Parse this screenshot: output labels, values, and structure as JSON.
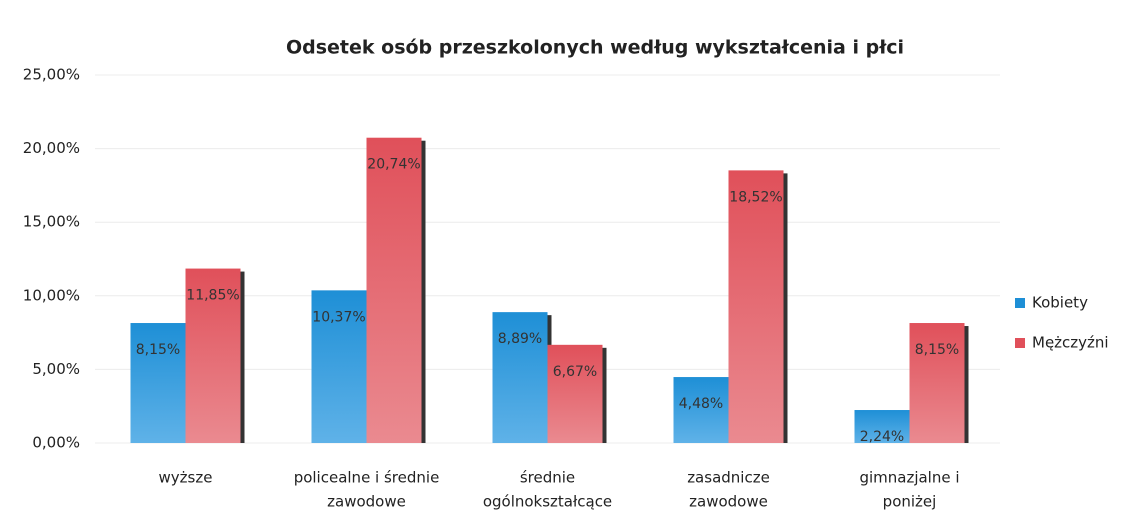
{
  "chart_data": {
    "type": "bar",
    "title": "Odsetek osób przeszkolonych według wykształcenia i płci",
    "categories": [
      [
        "wyższe"
      ],
      [
        "policealne i średnie",
        "zawodowe"
      ],
      [
        "średnie",
        "ogólnokształcące"
      ],
      [
        "zasadnicze",
        "zawodowe"
      ],
      [
        "gimnazjalne i",
        "poniżej"
      ]
    ],
    "series": [
      {
        "name": "Kobiety",
        "color": "#1e8fd6",
        "values": [
          8.15,
          10.37,
          8.89,
          4.48,
          2.24
        ],
        "value_labels": [
          "8,15%",
          "10,37%",
          "8,89%",
          "4,48%",
          "2,24%"
        ]
      },
      {
        "name": "Mężczyźni",
        "color": "#e0505a",
        "values": [
          11.85,
          20.74,
          6.67,
          18.52,
          8.15
        ],
        "value_labels": [
          "11,85%",
          "20,74%",
          "6,67%",
          "18,52%",
          "8,15%"
        ]
      }
    ],
    "ylim": [
      0,
      25
    ],
    "yticks": [
      {
        "value": 0,
        "label": "0,00%"
      },
      {
        "value": 5,
        "label": "5,00%"
      },
      {
        "value": 10,
        "label": "10,00%"
      },
      {
        "value": 15,
        "label": "15,00%"
      },
      {
        "value": 20,
        "label": "20,00%"
      },
      {
        "value": 25,
        "label": "25,00%"
      }
    ],
    "grid": true,
    "legend": "right"
  }
}
